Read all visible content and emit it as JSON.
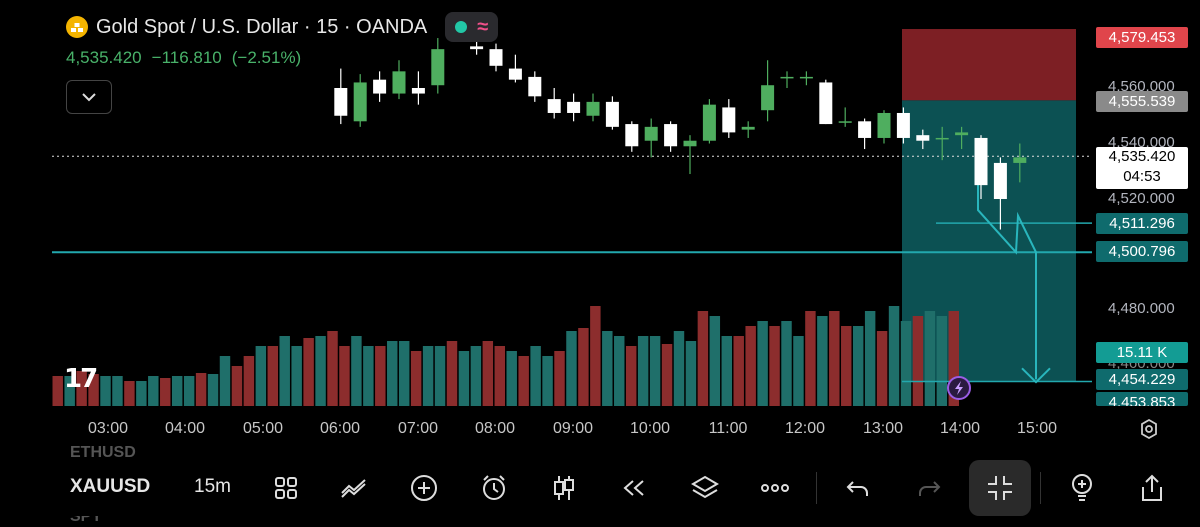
{
  "header": {
    "symbol_title": "Gold Spot / U.S. Dollar · 15 · OANDA",
    "symbol_icon": "gold-bars-icon",
    "pill_icons": [
      "green-dot-icon",
      "wave-icon"
    ],
    "wave_glyph": "≈",
    "last_price": "4,535.420",
    "change": "−116.810",
    "change_pct": "(−2.51%)",
    "quote_color": "#49b26a"
  },
  "price_scale": {
    "ticks": [
      "4,560.000",
      "4,540.000",
      "4,520.000",
      "4,480.000",
      "4,460.000"
    ],
    "stop_label": "4,579.453",
    "entry_label": "4,555.539",
    "current_price": "4,535.420",
    "countdown": "04:53",
    "level1": "4,511.296",
    "level2": "4,500.796",
    "volume_label": "15.11 K",
    "target_label": "4,454.229",
    "level3": "4,453.853"
  },
  "time_axis": [
    "03:00",
    "04:00",
    "05:00",
    "06:00",
    "07:00",
    "08:00",
    "09:00",
    "10:00",
    "11:00",
    "12:00",
    "13:00",
    "14:00",
    "15:00"
  ],
  "tv_logo": "17",
  "ghost_symbols": {
    "above": "ETHUSD",
    "below": "SPY"
  },
  "toolbar": {
    "symbol": "XAUUSD",
    "interval": "15m",
    "buttons": [
      "grid-layout-icon",
      "indicators-icon",
      "add-icon",
      "alert-clock-icon",
      "candle-type-icon",
      "replay-icon",
      "layers-icon",
      "more-icon",
      "undo-icon",
      "redo-icon",
      "fullscreen-exit-icon",
      "ideas-icon",
      "share-icon"
    ]
  },
  "colors": {
    "bull": "#4fae5f",
    "bull_white": "#ffffff",
    "vol_up": "#1f6f6a",
    "vol_down": "#8c2d2d",
    "stop_zone": "#7d1f24",
    "target_zone": "#0d5a5c",
    "stop_label_bg": "#e0454b",
    "entry_label_bg": "#8a8a8a",
    "level_label_bg": "#0f6b6d",
    "accent_line": "#22a8ae"
  },
  "chart_data": {
    "type": "candlestick",
    "symbol": "XAUUSD",
    "interval": "15m",
    "ylim": [
      4450,
      4585
    ],
    "x_ticks": [
      "03:00",
      "04:00",
      "05:00",
      "06:00",
      "07:00",
      "08:00",
      "09:00",
      "10:00",
      "11:00",
      "12:00",
      "13:00",
      "14:00",
      "15:00"
    ],
    "candles": [
      {
        "t": "06:00",
        "o": 4560,
        "h": 4567,
        "l": 4547,
        "c": 4550
      },
      {
        "t": "06:15",
        "o": 4548,
        "h": 4565,
        "l": 4546,
        "c": 4562
      },
      {
        "t": "06:30",
        "o": 4563,
        "h": 4566,
        "l": 4555,
        "c": 4558
      },
      {
        "t": "06:45",
        "o": 4558,
        "h": 4570,
        "l": 4556,
        "c": 4566
      },
      {
        "t": "07:00",
        "o": 4560,
        "h": 4566,
        "l": 4554,
        "c": 4558
      },
      {
        "t": "07:15",
        "o": 4561,
        "h": 4578,
        "l": 4558,
        "c": 4574
      },
      {
        "t": "07:45",
        "o": 4575,
        "h": 4578,
        "l": 4572,
        "c": 4574
      },
      {
        "t": "08:00",
        "o": 4574,
        "h": 4576,
        "l": 4566,
        "c": 4568
      },
      {
        "t": "08:15",
        "o": 4567,
        "h": 4572,
        "l": 4562,
        "c": 4563
      },
      {
        "t": "08:30",
        "o": 4564,
        "h": 4566,
        "l": 4555,
        "c": 4557
      },
      {
        "t": "08:45",
        "o": 4556,
        "h": 4560,
        "l": 4549,
        "c": 4551
      },
      {
        "t": "09:00",
        "o": 4555,
        "h": 4558,
        "l": 4548,
        "c": 4551
      },
      {
        "t": "09:15",
        "o": 4550,
        "h": 4558,
        "l": 4548,
        "c": 4555
      },
      {
        "t": "09:30",
        "o": 4555,
        "h": 4557,
        "l": 4545,
        "c": 4546
      },
      {
        "t": "09:45",
        "o": 4547,
        "h": 4548,
        "l": 4537,
        "c": 4539
      },
      {
        "t": "10:00",
        "o": 4541,
        "h": 4549,
        "l": 4535,
        "c": 4546
      },
      {
        "t": "10:15",
        "o": 4547,
        "h": 4548,
        "l": 4537,
        "c": 4539
      },
      {
        "t": "10:30",
        "o": 4539,
        "h": 4543,
        "l": 4529,
        "c": 4541
      },
      {
        "t": "10:45",
        "o": 4541,
        "h": 4556,
        "l": 4540,
        "c": 4554
      },
      {
        "t": "11:00",
        "o": 4553,
        "h": 4556,
        "l": 4542,
        "c": 4544
      },
      {
        "t": "11:15",
        "o": 4545,
        "h": 4548,
        "l": 4542,
        "c": 4546
      },
      {
        "t": "11:30",
        "o": 4552,
        "h": 4570,
        "l": 4548,
        "c": 4561
      },
      {
        "t": "11:45",
        "o": 4564,
        "h": 4566,
        "l": 4560,
        "c": 4564
      },
      {
        "t": "12:00",
        "o": 4564,
        "h": 4566,
        "l": 4561,
        "c": 4564
      },
      {
        "t": "12:15",
        "o": 4562,
        "h": 4563,
        "l": 4547,
        "c": 4547
      },
      {
        "t": "12:30",
        "o": 4548,
        "h": 4553,
        "l": 4546,
        "c": 4548
      },
      {
        "t": "12:45",
        "o": 4548,
        "h": 4549,
        "l": 4538,
        "c": 4542
      },
      {
        "t": "13:00",
        "o": 4542,
        "h": 4552,
        "l": 4540,
        "c": 4551
      },
      {
        "t": "13:15",
        "o": 4551,
        "h": 4553,
        "l": 4540,
        "c": 4542
      },
      {
        "t": "13:30",
        "o": 4543,
        "h": 4545,
        "l": 4538,
        "c": 4541
      },
      {
        "t": "13:45",
        "o": 4542,
        "h": 4546,
        "l": 4534,
        "c": 4542
      },
      {
        "t": "14:00",
        "o": 4543,
        "h": 4546,
        "l": 4538,
        "c": 4544
      },
      {
        "t": "14:15",
        "o": 4542,
        "h": 4543,
        "l": 4520,
        "c": 4525
      },
      {
        "t": "14:30",
        "o": 4533,
        "h": 4535,
        "l": 4509,
        "c": 4520
      },
      {
        "t": "14:45",
        "o": 4533,
        "h": 4540,
        "l": 4526,
        "c": 4535
      }
    ],
    "volume": [
      0.3,
      0.3,
      0.35,
      0.32,
      0.3,
      0.3,
      0.25,
      0.25,
      0.3,
      0.28,
      0.3,
      0.3,
      0.33,
      0.32,
      0.5,
      0.4,
      0.5,
      0.6,
      0.6,
      0.7,
      0.6,
      0.68,
      0.7,
      0.75,
      0.6,
      0.7,
      0.6,
      0.6,
      0.65,
      0.65,
      0.55,
      0.6,
      0.6,
      0.65,
      0.55,
      0.6,
      0.65,
      0.6,
      0.55,
      0.5,
      0.6,
      0.5,
      0.55,
      0.75,
      0.78,
      1.0,
      0.75,
      0.7,
      0.6,
      0.7,
      0.7,
      0.62,
      0.75,
      0.65,
      0.95,
      0.9,
      0.7,
      0.7,
      0.8,
      0.85,
      0.8,
      0.85,
      0.7,
      0.95,
      0.9,
      0.95,
      0.8,
      0.8,
      0.95,
      0.75,
      1.0,
      0.85,
      0.9,
      0.95,
      0.9,
      0.95
    ],
    "annotations": {
      "short_position": {
        "entry": 4555.539,
        "stop": 4579.453,
        "target": 4454.229
      },
      "horizontal_line": 4500.796,
      "levels": [
        4511.296,
        4453.853
      ]
    }
  }
}
